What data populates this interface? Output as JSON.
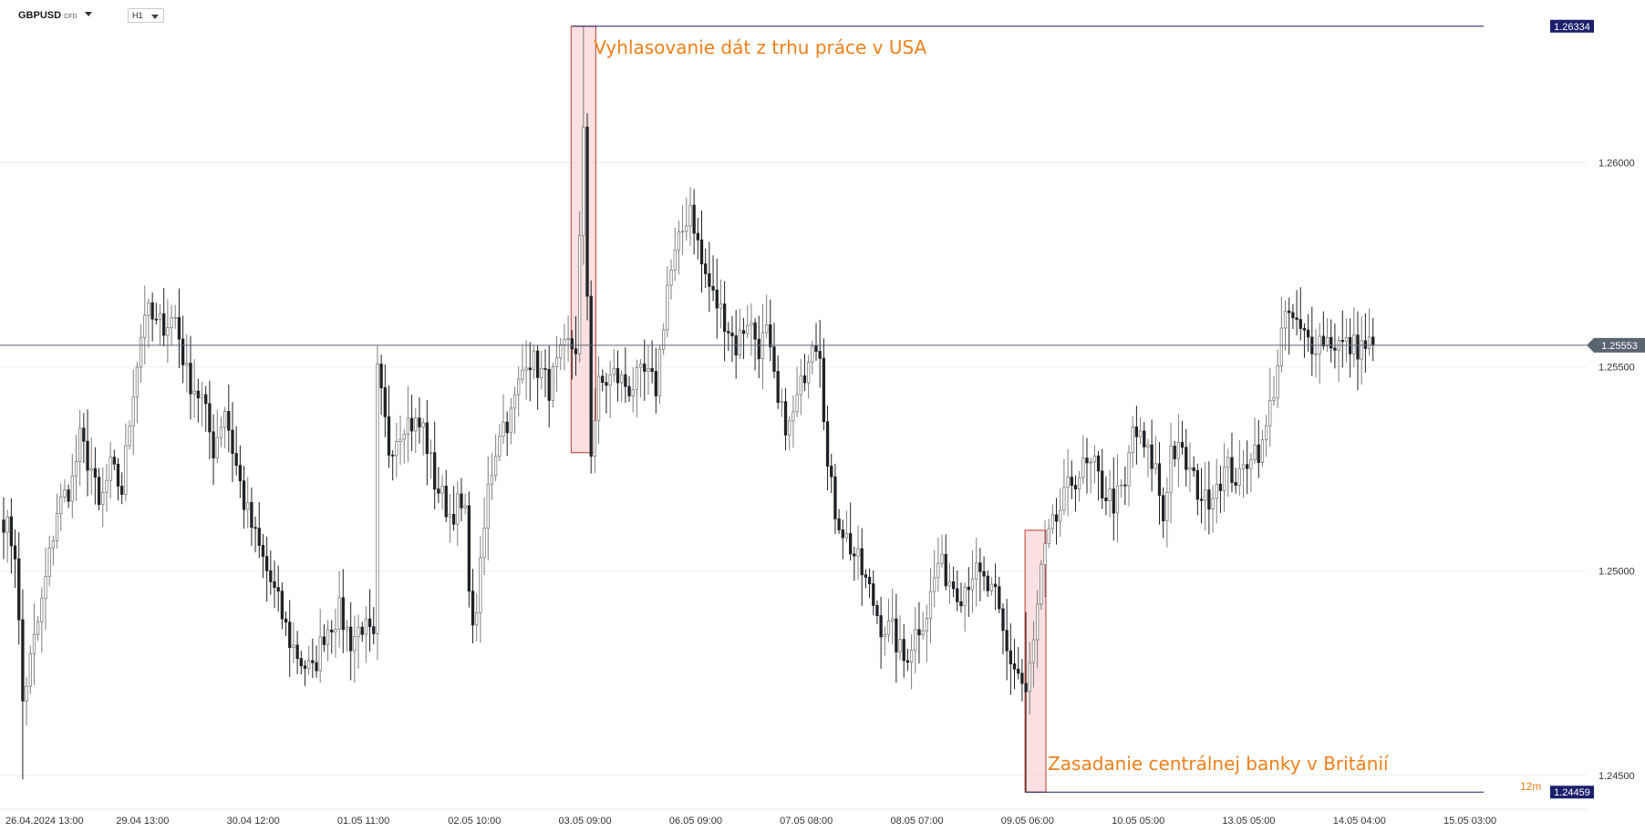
{
  "toolbar": {
    "symbol": "GBPUSD",
    "symbol_type": "CFD",
    "timeframe": "H1"
  },
  "colors": {
    "candle_up": "#9a9a9a",
    "candle_down": "#1f2326",
    "annotation_text": "#ef7f1a",
    "highlight_fill": "#f5c6c6",
    "highlight_stroke": "#c0392b",
    "level_line": "#1b1f6b",
    "current_price": "#5a6570"
  },
  "icons": {
    "dropdown": "chevron-down-icon"
  },
  "chart_data": {
    "type": "candlestick",
    "xlim": [
      0,
      415
    ],
    "ylim": [
      1.24435,
      1.26358
    ],
    "x_ticks": [
      {
        "i": 0,
        "label": "26.04.2024  13:00"
      },
      {
        "i": 29,
        "label": "29.04  13:00"
      },
      {
        "i": 58,
        "label": "30.04  12:00"
      },
      {
        "i": 87,
        "label": "01.05  11:00"
      },
      {
        "i": 116,
        "label": "02.05  10:00"
      },
      {
        "i": 145,
        "label": "03.05  09:00"
      },
      {
        "i": 174,
        "label": "06.05  09:00"
      },
      {
        "i": 203,
        "label": "07.05  08:00"
      },
      {
        "i": 232,
        "label": "08.05  07:00"
      },
      {
        "i": 261,
        "label": "09.05  06:00"
      },
      {
        "i": 290,
        "label": "10.05  05:00"
      },
      {
        "i": 319,
        "label": "13.05  05:00"
      },
      {
        "i": 348,
        "label": "14.05  04:00"
      },
      {
        "i": 377,
        "label": "15.05  03:00"
      }
    ],
    "y_ticks": [
      {
        "value": 1.245,
        "label": "1.24500"
      },
      {
        "value": 1.25,
        "label": "1.25000"
      },
      {
        "value": 1.255,
        "label": "1.25500"
      },
      {
        "value": 1.26,
        "label": "1.26000"
      }
    ],
    "price_tags": [
      {
        "value": 1.26334,
        "label": "1.26334"
      },
      {
        "value": 1.24459,
        "label": "1.24459"
      }
    ],
    "current_price": {
      "value": 1.25553,
      "label": "1.25553"
    },
    "countdown": "12m",
    "annotations": [
      {
        "text": "Vyhlasovanie dát z trhu práce v USA",
        "from": 149,
        "to": 155,
        "low": 1.2529,
        "high": 1.26334,
        "level": 1.26334,
        "level_end": 388
      },
      {
        "text": "Zasadanie centrálnej banky v Británií",
        "from": 268,
        "to": 273,
        "low": 1.24459,
        "high": 1.251,
        "level": 1.24459,
        "level_end": 388
      }
    ],
    "candles": [],
    "anchors": [
      [
        0,
        1.2513
      ],
      [
        3,
        1.2505
      ],
      [
        5,
        1.2468
      ],
      [
        7,
        1.2478
      ],
      [
        10,
        1.2492
      ],
      [
        14,
        1.2515
      ],
      [
        18,
        1.2522
      ],
      [
        20,
        1.2532
      ],
      [
        23,
        1.2525
      ],
      [
        25,
        1.2515
      ],
      [
        28,
        1.2525
      ],
      [
        31,
        1.252
      ],
      [
        34,
        1.2545
      ],
      [
        37,
        1.2564
      ],
      [
        40,
        1.256
      ],
      [
        45,
        1.2562
      ],
      [
        48,
        1.2548
      ],
      [
        52,
        1.2542
      ],
      [
        55,
        1.253
      ],
      [
        58,
        1.254
      ],
      [
        60,
        1.253
      ],
      [
        63,
        1.2517
      ],
      [
        66,
        1.2508
      ],
      [
        69,
        1.25
      ],
      [
        72,
        1.2492
      ],
      [
        75,
        1.2483
      ],
      [
        78,
        1.2478
      ],
      [
        81,
        1.2475
      ],
      [
        84,
        1.2485
      ],
      [
        88,
        1.249
      ],
      [
        91,
        1.2483
      ],
      [
        94,
        1.2487
      ],
      [
        97,
        1.2482
      ],
      [
        98,
        1.2548
      ],
      [
        101,
        1.253
      ],
      [
        105,
        1.2537
      ],
      [
        110,
        1.2535
      ],
      [
        113,
        1.2522
      ],
      [
        117,
        1.2514
      ],
      [
        119,
        1.2516
      ],
      [
        121,
        1.2513
      ],
      [
        123,
        1.2484
      ],
      [
        125,
        1.25
      ],
      [
        127,
        1.252
      ],
      [
        130,
        1.2535
      ],
      [
        133,
        1.2538
      ],
      [
        137,
        1.2553
      ],
      [
        140,
        1.255
      ],
      [
        143,
        1.2545
      ],
      [
        146,
        1.2552
      ],
      [
        148,
        1.2555
      ],
      [
        150,
        1.2555
      ],
      [
        152,
        1.2606
      ],
      [
        154,
        1.253
      ],
      [
        156,
        1.2545
      ],
      [
        160,
        1.2548
      ],
      [
        164,
        1.2545
      ],
      [
        168,
        1.2548
      ],
      [
        171,
        1.2545
      ],
      [
        174,
        1.257
      ],
      [
        177,
        1.258
      ],
      [
        180,
        1.259
      ],
      [
        183,
        1.2575
      ],
      [
        186,
        1.2567
      ],
      [
        189,
        1.2562
      ],
      [
        192,
        1.2555
      ],
      [
        195,
        1.2562
      ],
      [
        198,
        1.2555
      ],
      [
        200,
        1.2558
      ],
      [
        203,
        1.254
      ],
      [
        206,
        1.2535
      ],
      [
        209,
        1.2545
      ],
      [
        212,
        1.2558
      ],
      [
        214,
        1.2555
      ],
      [
        216,
        1.2525
      ],
      [
        218,
        1.2515
      ],
      [
        221,
        1.2508
      ],
      [
        224,
        1.2502
      ],
      [
        227,
        1.2495
      ],
      [
        230,
        1.2487
      ],
      [
        233,
        1.2485
      ],
      [
        236,
        1.2478
      ],
      [
        239,
        1.2485
      ],
      [
        242,
        1.249
      ],
      [
        245,
        1.2502
      ],
      [
        248,
        1.2498
      ],
      [
        251,
        1.2495
      ],
      [
        254,
        1.25
      ],
      [
        257,
        1.2497
      ],
      [
        260,
        1.2493
      ],
      [
        263,
        1.248
      ],
      [
        266,
        1.2475
      ],
      [
        268,
        1.247
      ],
      [
        270,
        1.2482
      ],
      [
        272,
        1.25
      ],
      [
        274,
        1.2508
      ],
      [
        277,
        1.2515
      ],
      [
        280,
        1.2522
      ],
      [
        283,
        1.2525
      ],
      [
        286,
        1.2525
      ],
      [
        288,
        1.252
      ],
      [
        291,
        1.2517
      ],
      [
        294,
        1.252
      ],
      [
        296,
        1.2535
      ],
      [
        299,
        1.253
      ],
      [
        302,
        1.2525
      ],
      [
        304,
        1.2513
      ],
      [
        306,
        1.253
      ],
      [
        309,
        1.2528
      ],
      [
        312,
        1.2522
      ],
      [
        315,
        1.2517
      ],
      [
        318,
        1.2522
      ],
      [
        321,
        1.2525
      ],
      [
        324,
        1.2522
      ],
      [
        327,
        1.253
      ],
      [
        330,
        1.253
      ],
      [
        333,
        1.2545
      ],
      [
        335,
        1.2558
      ],
      [
        337,
        1.2563
      ],
      [
        340,
        1.2558
      ],
      [
        343,
        1.2556
      ],
      [
        346,
        1.2557
      ],
      [
        349,
        1.2556
      ],
      [
        352,
        1.2555
      ],
      [
        355,
        1.2555
      ],
      [
        359,
        1.25553
      ]
    ],
    "wick_extremes": {
      "5": [
        1.2487,
        1.2449
      ],
      "152": [
        1.26334,
        1.2575
      ],
      "154": [
        1.256,
        1.2529
      ],
      "180": [
        1.2594,
        1.258
      ],
      "268": [
        1.249,
        1.24459
      ],
      "337": [
        1.2567,
        1.2553
      ]
    }
  }
}
